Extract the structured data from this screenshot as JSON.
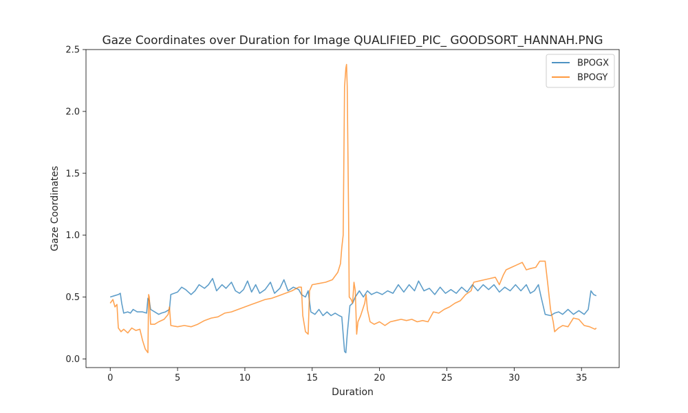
{
  "chart_data": {
    "type": "line",
    "title": "Gaze Coordinates over Duration for Image QUALIFIED_PIC_ GOODSORT_HANNAH.PNG",
    "xlabel": "Duration",
    "ylabel": "Gaze Coordinates",
    "xlim": [
      -1.8,
      37.8
    ],
    "ylim": [
      -0.07,
      2.5
    ],
    "xticks": [
      0,
      5,
      10,
      15,
      20,
      25,
      30,
      35
    ],
    "yticks": [
      0.0,
      0.5,
      1.0,
      1.5,
      2.0,
      2.5
    ],
    "ytick_labels": [
      "0.0",
      "0.5",
      "1.0",
      "1.5",
      "2.0",
      "2.5"
    ],
    "legend_position": "upper right",
    "grid": false,
    "series": [
      {
        "name": "BPOGX",
        "color": "#1f77b4",
        "points": [
          [
            0.0,
            0.5
          ],
          [
            0.3,
            0.51
          ],
          [
            0.6,
            0.52
          ],
          [
            0.75,
            0.53
          ],
          [
            0.85,
            0.45
          ],
          [
            1.0,
            0.37
          ],
          [
            1.3,
            0.38
          ],
          [
            1.5,
            0.37
          ],
          [
            1.7,
            0.4
          ],
          [
            2.0,
            0.38
          ],
          [
            2.4,
            0.38
          ],
          [
            2.7,
            0.37
          ],
          [
            2.8,
            0.49
          ],
          [
            2.9,
            0.47
          ],
          [
            3.0,
            0.4
          ],
          [
            3.3,
            0.38
          ],
          [
            3.6,
            0.36
          ],
          [
            3.8,
            0.37
          ],
          [
            4.1,
            0.38
          ],
          [
            4.4,
            0.4
          ],
          [
            4.5,
            0.52
          ],
          [
            5.0,
            0.54
          ],
          [
            5.3,
            0.58
          ],
          [
            5.6,
            0.56
          ],
          [
            6.0,
            0.52
          ],
          [
            6.3,
            0.55
          ],
          [
            6.6,
            0.6
          ],
          [
            7.0,
            0.57
          ],
          [
            7.3,
            0.6
          ],
          [
            7.6,
            0.65
          ],
          [
            7.9,
            0.55
          ],
          [
            8.3,
            0.6
          ],
          [
            8.6,
            0.57
          ],
          [
            9.0,
            0.62
          ],
          [
            9.3,
            0.55
          ],
          [
            9.6,
            0.53
          ],
          [
            9.9,
            0.56
          ],
          [
            10.2,
            0.63
          ],
          [
            10.5,
            0.54
          ],
          [
            10.8,
            0.6
          ],
          [
            11.1,
            0.53
          ],
          [
            11.5,
            0.56
          ],
          [
            11.9,
            0.62
          ],
          [
            12.2,
            0.53
          ],
          [
            12.6,
            0.57
          ],
          [
            12.9,
            0.64
          ],
          [
            13.2,
            0.55
          ],
          [
            13.6,
            0.58
          ],
          [
            14.0,
            0.56
          ],
          [
            14.2,
            0.52
          ],
          [
            14.5,
            0.5
          ],
          [
            14.7,
            0.55
          ],
          [
            14.9,
            0.38
          ],
          [
            15.2,
            0.36
          ],
          [
            15.5,
            0.4
          ],
          [
            15.8,
            0.35
          ],
          [
            16.1,
            0.38
          ],
          [
            16.4,
            0.35
          ],
          [
            16.7,
            0.37
          ],
          [
            17.0,
            0.35
          ],
          [
            17.2,
            0.34
          ],
          [
            17.3,
            0.2
          ],
          [
            17.4,
            0.06
          ],
          [
            17.5,
            0.05
          ],
          [
            17.6,
            0.2
          ],
          [
            17.8,
            0.43
          ],
          [
            18.0,
            0.45
          ],
          [
            18.2,
            0.5
          ],
          [
            18.5,
            0.55
          ],
          [
            18.8,
            0.5
          ],
          [
            19.1,
            0.55
          ],
          [
            19.4,
            0.52
          ],
          [
            19.8,
            0.54
          ],
          [
            20.2,
            0.52
          ],
          [
            20.6,
            0.55
          ],
          [
            21.0,
            0.53
          ],
          [
            21.4,
            0.6
          ],
          [
            21.8,
            0.54
          ],
          [
            22.2,
            0.6
          ],
          [
            22.6,
            0.55
          ],
          [
            22.9,
            0.63
          ],
          [
            23.3,
            0.55
          ],
          [
            23.7,
            0.57
          ],
          [
            24.1,
            0.52
          ],
          [
            24.5,
            0.58
          ],
          [
            24.9,
            0.53
          ],
          [
            25.3,
            0.56
          ],
          [
            25.7,
            0.53
          ],
          [
            26.1,
            0.58
          ],
          [
            26.5,
            0.54
          ],
          [
            26.9,
            0.6
          ],
          [
            27.3,
            0.55
          ],
          [
            27.7,
            0.6
          ],
          [
            28.1,
            0.56
          ],
          [
            28.5,
            0.6
          ],
          [
            28.9,
            0.54
          ],
          [
            29.3,
            0.58
          ],
          [
            29.7,
            0.55
          ],
          [
            30.1,
            0.6
          ],
          [
            30.5,
            0.55
          ],
          [
            30.9,
            0.6
          ],
          [
            31.2,
            0.53
          ],
          [
            31.5,
            0.55
          ],
          [
            31.8,
            0.6
          ],
          [
            32.0,
            0.5
          ],
          [
            32.3,
            0.36
          ],
          [
            32.7,
            0.35
          ],
          [
            33.0,
            0.37
          ],
          [
            33.3,
            0.38
          ],
          [
            33.6,
            0.36
          ],
          [
            34.0,
            0.4
          ],
          [
            34.4,
            0.36
          ],
          [
            34.8,
            0.39
          ],
          [
            35.2,
            0.36
          ],
          [
            35.5,
            0.4
          ],
          [
            35.7,
            0.55
          ],
          [
            35.9,
            0.52
          ],
          [
            36.1,
            0.51
          ]
        ]
      },
      {
        "name": "BPOGY",
        "color": "#ff7f0e",
        "points": [
          [
            0.0,
            0.45
          ],
          [
            0.2,
            0.48
          ],
          [
            0.35,
            0.42
          ],
          [
            0.5,
            0.44
          ],
          [
            0.6,
            0.25
          ],
          [
            0.8,
            0.22
          ],
          [
            1.0,
            0.24
          ],
          [
            1.3,
            0.21
          ],
          [
            1.6,
            0.25
          ],
          [
            1.9,
            0.23
          ],
          [
            2.2,
            0.24
          ],
          [
            2.4,
            0.15
          ],
          [
            2.6,
            0.08
          ],
          [
            2.8,
            0.05
          ],
          [
            2.85,
            0.52
          ],
          [
            2.9,
            0.5
          ],
          [
            3.0,
            0.28
          ],
          [
            3.3,
            0.28
          ],
          [
            3.6,
            0.3
          ],
          [
            4.0,
            0.32
          ],
          [
            4.3,
            0.36
          ],
          [
            4.4,
            0.42
          ],
          [
            4.5,
            0.27
          ],
          [
            5.0,
            0.26
          ],
          [
            5.5,
            0.27
          ],
          [
            6.0,
            0.26
          ],
          [
            6.5,
            0.28
          ],
          [
            7.0,
            0.31
          ],
          [
            7.5,
            0.33
          ],
          [
            8.0,
            0.34
          ],
          [
            8.5,
            0.37
          ],
          [
            9.0,
            0.38
          ],
          [
            9.5,
            0.4
          ],
          [
            10.0,
            0.42
          ],
          [
            10.5,
            0.44
          ],
          [
            11.0,
            0.46
          ],
          [
            11.5,
            0.48
          ],
          [
            12.0,
            0.49
          ],
          [
            12.5,
            0.51
          ],
          [
            13.0,
            0.53
          ],
          [
            13.5,
            0.55
          ],
          [
            14.0,
            0.58
          ],
          [
            14.2,
            0.58
          ],
          [
            14.3,
            0.35
          ],
          [
            14.5,
            0.22
          ],
          [
            14.7,
            0.2
          ],
          [
            14.8,
            0.55
          ],
          [
            15.0,
            0.6
          ],
          [
            15.5,
            0.61
          ],
          [
            16.0,
            0.62
          ],
          [
            16.5,
            0.64
          ],
          [
            16.9,
            0.7
          ],
          [
            17.1,
            0.77
          ],
          [
            17.2,
            0.9
          ],
          [
            17.3,
            1.0
          ],
          [
            17.4,
            2.2
          ],
          [
            17.5,
            2.35
          ],
          [
            17.55,
            2.38
          ],
          [
            17.6,
            2.2
          ],
          [
            17.7,
            1.2
          ],
          [
            17.75,
            0.5
          ],
          [
            17.9,
            0.48
          ],
          [
            18.0,
            0.45
          ],
          [
            18.1,
            0.62
          ],
          [
            18.2,
            0.55
          ],
          [
            18.3,
            0.2
          ],
          [
            18.4,
            0.3
          ],
          [
            18.6,
            0.35
          ],
          [
            18.9,
            0.45
          ],
          [
            19.0,
            0.52
          ],
          [
            19.1,
            0.4
          ],
          [
            19.3,
            0.3
          ],
          [
            19.6,
            0.28
          ],
          [
            20.0,
            0.3
          ],
          [
            20.4,
            0.27
          ],
          [
            20.8,
            0.3
          ],
          [
            21.2,
            0.31
          ],
          [
            21.6,
            0.32
          ],
          [
            22.0,
            0.31
          ],
          [
            22.4,
            0.32
          ],
          [
            22.8,
            0.3
          ],
          [
            23.2,
            0.31
          ],
          [
            23.6,
            0.3
          ],
          [
            24.0,
            0.38
          ],
          [
            24.4,
            0.37
          ],
          [
            24.8,
            0.4
          ],
          [
            25.2,
            0.42
          ],
          [
            25.6,
            0.45
          ],
          [
            26.0,
            0.47
          ],
          [
            26.4,
            0.52
          ],
          [
            26.8,
            0.55
          ],
          [
            27.0,
            0.62
          ],
          [
            27.4,
            0.63
          ],
          [
            27.8,
            0.64
          ],
          [
            28.2,
            0.65
          ],
          [
            28.6,
            0.66
          ],
          [
            28.9,
            0.6
          ],
          [
            29.2,
            0.68
          ],
          [
            29.4,
            0.72
          ],
          [
            29.8,
            0.74
          ],
          [
            30.2,
            0.76
          ],
          [
            30.6,
            0.78
          ],
          [
            30.9,
            0.72
          ],
          [
            31.2,
            0.73
          ],
          [
            31.6,
            0.74
          ],
          [
            31.9,
            0.79
          ],
          [
            32.3,
            0.79
          ],
          [
            32.5,
            0.6
          ],
          [
            32.7,
            0.4
          ],
          [
            32.9,
            0.3
          ],
          [
            33.0,
            0.22
          ],
          [
            33.3,
            0.25
          ],
          [
            33.6,
            0.27
          ],
          [
            34.0,
            0.26
          ],
          [
            34.4,
            0.33
          ],
          [
            34.8,
            0.32
          ],
          [
            35.2,
            0.27
          ],
          [
            35.6,
            0.26
          ],
          [
            36.0,
            0.24
          ],
          [
            36.1,
            0.25
          ]
        ]
      }
    ]
  }
}
